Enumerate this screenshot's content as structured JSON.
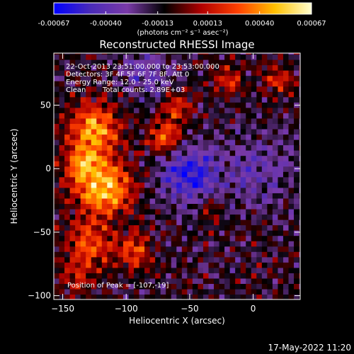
{
  "colorbar": {
    "ticks": [
      "-0.00067",
      "-0.00040",
      "-0.00013",
      "0.00013",
      "0.00040",
      "0.00067"
    ],
    "tick_values": [
      -0.00067,
      -0.0004,
      -0.00013,
      0.00013,
      0.0004,
      0.00067
    ],
    "unit_label": "(photons cm⁻² s⁻¹ asec⁻²)",
    "range": [
      -0.00067,
      0.00067
    ]
  },
  "chart_data": {
    "type": "heatmap",
    "title": "Reconstructed RHESSI Image",
    "xlabel": "Heliocentric X (arcsec)",
    "ylabel": "Heliocentric Y (arcsec)",
    "xlim": [
      -157,
      37
    ],
    "ylim": [
      -103,
      91
    ],
    "x_ticks": [
      -150,
      -100,
      -50,
      0
    ],
    "y_ticks": [
      -100,
      -50,
      0,
      50
    ],
    "colormap": [
      "#0000ff",
      "#4a2bb8",
      "#7a3aa8",
      "#000000",
      "#b00000",
      "#ff4000",
      "#ffc000",
      "#ffffd0"
    ],
    "peak": [
      -107,
      -19
    ],
    "sources": [
      {
        "x": -125,
        "y": 32,
        "sigma": 14,
        "amp": 0.00055
      },
      {
        "x": -118,
        "y": -15,
        "sigma": 16,
        "amp": 0.00062
      },
      {
        "x": -135,
        "y": 5,
        "sigma": 10,
        "amp": 0.0004
      },
      {
        "x": -70,
        "y": 25,
        "sigma": 9,
        "amp": 0.00045
      },
      {
        "x": -60,
        "y": 48,
        "sigma": 8,
        "amp": 0.00035
      },
      {
        "x": -130,
        "y": -60,
        "sigma": 12,
        "amp": 0.0004
      },
      {
        "x": -95,
        "y": -65,
        "sigma": 10,
        "amp": 0.00035
      },
      {
        "x": -20,
        "y": 70,
        "sigma": 8,
        "amp": 0.0003
      },
      {
        "x": 20,
        "y": 70,
        "sigma": 8,
        "amp": 0.0003
      },
      {
        "x": -35,
        "y": -30,
        "sigma": 7,
        "amp": 0.00025
      },
      {
        "x": -140,
        "y": -85,
        "sigma": 9,
        "amp": 0.00025
      },
      {
        "x": -50,
        "y": -5,
        "sigma": 16,
        "amp": -0.00045
      },
      {
        "x": 5,
        "y": 0,
        "sigma": 20,
        "amp": -0.00022
      },
      {
        "x": -85,
        "y": 75,
        "sigma": 14,
        "amp": -0.00022
      }
    ]
  },
  "annotations": {
    "time": "22-Oct-2013 23:51:00.000 to 23:53:00.000",
    "detectors": "Detectors: 3F 4F 5F 6F 7F 8F, Att 0",
    "energy": "Energy Range: 12.0 - 25.0 keV",
    "method": "Clean",
    "counts": "Total counts: 2.89E+03",
    "peak": "Position of Peak = [-107,-19]"
  },
  "footer": {
    "timestamp": "17-May-2022 11:20"
  }
}
